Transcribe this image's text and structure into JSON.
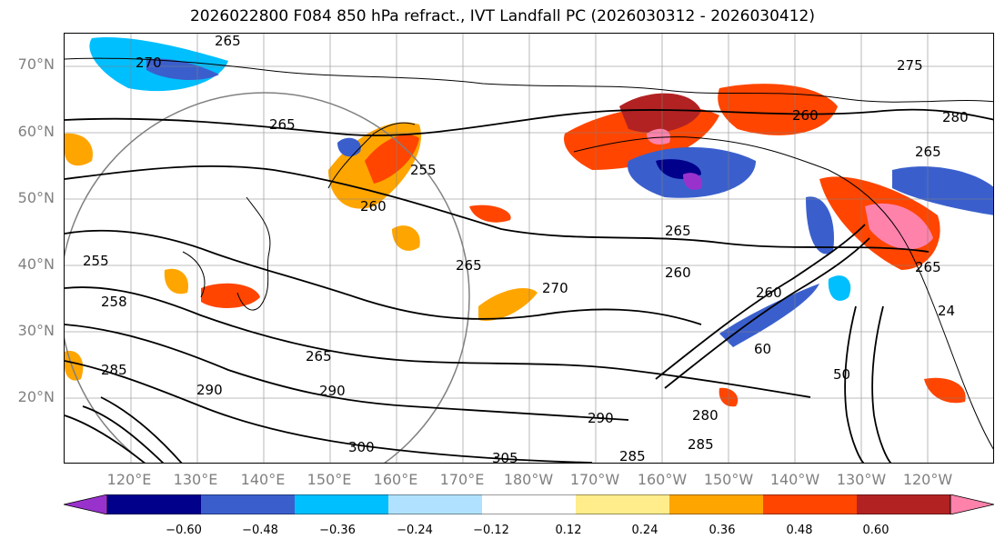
{
  "title": "2026022800 F084 850 hPa refract., IVT Landfall PC (2026030312 - 2026030412)",
  "lat_labels": [
    "70°N",
    "60°N",
    "50°N",
    "40°N",
    "30°N",
    "20°N"
  ],
  "lon_labels": [
    "120°E",
    "130°E",
    "140°E",
    "150°E",
    "160°E",
    "170°E",
    "180°W",
    "170°W",
    "160°W",
    "150°W",
    "140°W",
    "130°W",
    "120°W"
  ],
  "colorbar": {
    "colors": [
      "#9932cc",
      "#00008b",
      "#3a5fcd",
      "#00bfff",
      "#b0e2ff",
      "#ffffff",
      "#ffec8b",
      "#ffa500",
      "#ff4500",
      "#b22222",
      "#ff82ab"
    ],
    "ticks": [
      "−0.60",
      "−0.48",
      "−0.36",
      "−0.24",
      "−0.12",
      "0.12",
      "0.24",
      "0.36",
      "0.48",
      "0.60"
    ]
  },
  "contour_labels": [
    "265",
    "270",
    "275",
    "280",
    "265",
    "255",
    "260",
    "255",
    "265",
    "265",
    "260",
    "260",
    "265",
    "258",
    "285",
    "290",
    "290",
    "265",
    "290",
    "300",
    "305",
    "285",
    "285",
    "280",
    "270",
    "60",
    "50",
    "24",
    "265",
    "260"
  ]
}
